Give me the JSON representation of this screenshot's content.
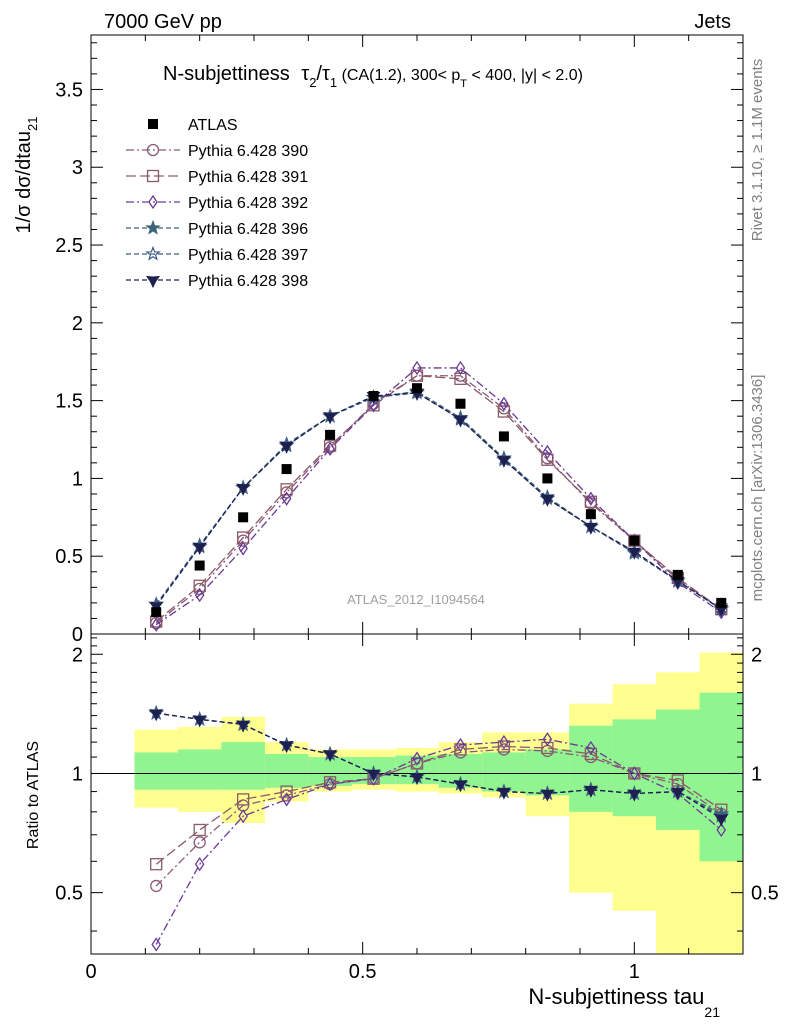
{
  "header": {
    "energy": "7000 GeV pp",
    "category": "Jets",
    "rivet": "Rivet 3.1.10, ≥ 1.1M events",
    "mcplots": "mcplots.cern.ch [arXiv:1306.3436]",
    "analysis_id": "ATLAS_2012_I1094564"
  },
  "chart_data": {
    "type": "scatter",
    "title_main": "N-subjettiness",
    "title_tau2": "τ",
    "title_sub2": "2",
    "title_slash": "/",
    "title_tau1": "τ",
    "title_sub1": "1",
    "title_cuts_a": " (CA(1.2), 300< p",
    "title_cuts_sub": "T",
    "title_cuts_b": " < 400, |y| < 2.0)",
    "xlabel_main": "N-subjettiness tau",
    "xlabel_sub": "21",
    "ylabel_main": "1/σ dσ/dtau",
    "ylabel_sub": "21",
    "ratio_ylabel": "Ratio to ATLAS",
    "xlim": [
      0,
      1.2
    ],
    "ylim_main": [
      0,
      3.85
    ],
    "ylim_ratio": [
      0.35,
      2.25
    ],
    "main_yticks": [
      "0",
      "0.5",
      "1",
      "1.5",
      "2",
      "2.5",
      "3",
      "3.5"
    ],
    "ratio_yticks": [
      "0.5",
      "1",
      "2"
    ],
    "xticks": [
      "0",
      "0.5",
      "1"
    ],
    "x": [
      0.12,
      0.2,
      0.28,
      0.36,
      0.44,
      0.52,
      0.6,
      0.68,
      0.76,
      0.84,
      0.92,
      1.0,
      1.08,
      1.16
    ],
    "bin_edges": [
      0.08,
      0.16,
      0.24,
      0.32,
      0.4,
      0.48,
      0.56,
      0.64,
      0.72,
      0.8,
      0.88,
      0.96,
      1.04,
      1.12,
      1.2
    ],
    "data": {
      "name": "ATLAS",
      "values": [
        0.14,
        0.44,
        0.75,
        1.06,
        1.28,
        1.53,
        1.58,
        1.48,
        1.27,
        1.0,
        0.77,
        0.6,
        0.38,
        0.2
      ]
    },
    "ratio_bands": {
      "green_lo": [
        0.91,
        0.91,
        0.91,
        0.92,
        0.93,
        0.94,
        0.94,
        0.92,
        0.9,
        0.88,
        0.8,
        0.78,
        0.72,
        0.6
      ],
      "green_hi": [
        1.13,
        1.15,
        1.2,
        1.12,
        1.1,
        1.1,
        1.11,
        1.12,
        1.13,
        1.15,
        1.32,
        1.37,
        1.45,
        1.6
      ],
      "yellow_lo": [
        0.82,
        0.8,
        0.75,
        0.85,
        0.9,
        0.91,
        0.9,
        0.89,
        0.87,
        0.78,
        0.5,
        0.45,
        0.35,
        0.35
      ],
      "yellow_hi": [
        1.29,
        1.31,
        1.39,
        1.2,
        1.15,
        1.15,
        1.16,
        1.2,
        1.27,
        1.27,
        1.5,
        1.68,
        1.8,
        2.02
      ],
      "colors": {
        "green": "#90f490",
        "yellow": "#ffff90"
      }
    },
    "series": [
      {
        "name": "Pythia 6.428 390",
        "color": "#8a5a78",
        "marker": "open-circle",
        "dash": "8,3,2,3",
        "values": [
          0.07,
          0.29,
          0.6,
          0.91,
          1.2,
          1.48,
          1.66,
          1.66,
          1.45,
          1.13,
          0.84,
          0.6,
          0.35,
          0.16
        ],
        "ratio": [
          0.52,
          0.67,
          0.83,
          0.88,
          0.94,
          0.97,
          1.06,
          1.13,
          1.15,
          1.14,
          1.1,
          1.0,
          0.94,
          0.79
        ]
      },
      {
        "name": "Pythia 6.428 391",
        "color": "#8a5a66",
        "marker": "open-square",
        "dash": "10,4",
        "values": [
          0.08,
          0.31,
          0.62,
          0.93,
          1.21,
          1.47,
          1.66,
          1.64,
          1.43,
          1.12,
          0.85,
          0.6,
          0.36,
          0.16
        ],
        "ratio": [
          0.59,
          0.72,
          0.86,
          0.9,
          0.95,
          0.97,
          1.06,
          1.15,
          1.17,
          1.16,
          1.12,
          1.0,
          0.96,
          0.81
        ]
      },
      {
        "name": "Pythia 6.428 392",
        "color": "#6a3a98",
        "marker": "open-diamond",
        "dash": "8,3,2,3",
        "values": [
          0.06,
          0.25,
          0.55,
          0.87,
          1.19,
          1.47,
          1.71,
          1.71,
          1.48,
          1.17,
          0.87,
          0.6,
          0.33,
          0.14
        ],
        "ratio": [
          0.37,
          0.59,
          0.78,
          0.86,
          0.94,
          0.97,
          1.09,
          1.18,
          1.2,
          1.22,
          1.16,
          1.0,
          0.89,
          0.72
        ]
      },
      {
        "name": "Pythia 6.428 396",
        "color": "#3e6478",
        "marker": "star",
        "dash": "5,3",
        "values": [
          0.19,
          0.56,
          0.94,
          1.21,
          1.4,
          1.52,
          1.56,
          1.39,
          1.13,
          0.88,
          0.69,
          0.53,
          0.34,
          0.16
        ],
        "ratio": [
          1.42,
          1.37,
          1.33,
          1.18,
          1.12,
          1.0,
          0.98,
          0.94,
          0.9,
          0.89,
          0.91,
          0.89,
          0.9,
          0.79
        ]
      },
      {
        "name": "Pythia 6.428 397",
        "color": "#3e5c86",
        "marker": "open-star",
        "dash": "5,3",
        "values": [
          0.19,
          0.57,
          0.94,
          1.22,
          1.4,
          1.52,
          1.55,
          1.38,
          1.12,
          0.87,
          0.69,
          0.52,
          0.34,
          0.16
        ],
        "ratio": [
          1.42,
          1.37,
          1.33,
          1.18,
          1.12,
          1.0,
          0.98,
          0.94,
          0.9,
          0.89,
          0.91,
          0.89,
          0.9,
          0.78
        ]
      },
      {
        "name": "Pythia 6.428 398",
        "color": "#1e2050",
        "marker": "filled-tri-down",
        "dash": "5,3",
        "values": [
          0.18,
          0.56,
          0.94,
          1.21,
          1.4,
          1.53,
          1.55,
          1.38,
          1.12,
          0.87,
          0.69,
          0.53,
          0.34,
          0.16
        ],
        "ratio": [
          1.42,
          1.37,
          1.33,
          1.18,
          1.12,
          1.0,
          0.98,
          0.94,
          0.9,
          0.89,
          0.91,
          0.89,
          0.9,
          0.77
        ]
      }
    ]
  }
}
